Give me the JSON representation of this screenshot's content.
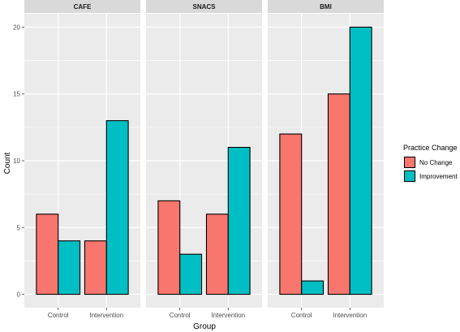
{
  "chart_data": {
    "type": "bar",
    "facets": [
      "CAFE",
      "SNACS",
      "BMI"
    ],
    "categories": [
      "Control",
      "Intervention"
    ],
    "series": [
      {
        "name": "No Change",
        "color": "#F8766D"
      },
      {
        "name": "Improvement",
        "color": "#00BFC4"
      }
    ],
    "values": {
      "CAFE": {
        "Control": [
          6,
          4
        ],
        "Intervention": [
          4,
          13
        ]
      },
      "SNACS": {
        "Control": [
          7,
          3
        ],
        "Intervention": [
          6,
          11
        ]
      },
      "BMI": {
        "Control": [
          12,
          1
        ],
        "Intervention": [
          15,
          20
        ]
      }
    },
    "xlabel": "Group",
    "ylabel": "Count",
    "ylim": [
      -1,
      21
    ],
    "yticks": [
      0,
      5,
      10,
      15,
      20
    ],
    "legend_title": "Practice Change",
    "legend_position": "right",
    "panel_background": "#EBEBEB",
    "strip_background": "#D9D9D9",
    "grid": true
  }
}
